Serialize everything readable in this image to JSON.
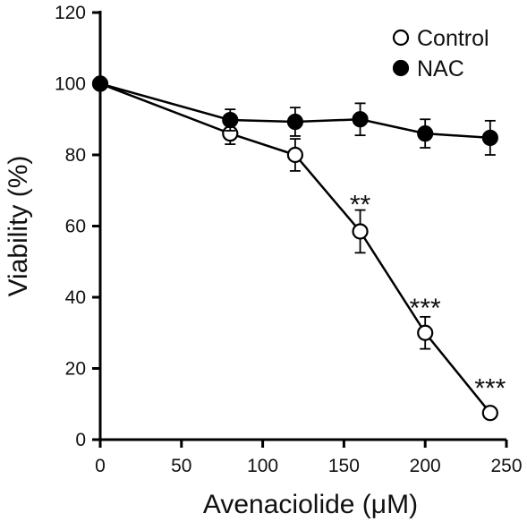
{
  "chart_data": {
    "type": "line",
    "title": "",
    "xlabel": "Avenaciolide (μM)",
    "ylabel": "Viability (%)",
    "xlim": [
      0,
      250
    ],
    "ylim": [
      0,
      120
    ],
    "xticks": [
      0,
      50,
      100,
      150,
      200,
      250
    ],
    "yticks": [
      0,
      20,
      40,
      60,
      80,
      100,
      120
    ],
    "grid": false,
    "legend_position": "top-right",
    "series": [
      {
        "name": "Control",
        "marker": "open-circle",
        "color": "#000000",
        "x": [
          0,
          80,
          120,
          160,
          200,
          240
        ],
        "y": [
          100,
          86,
          80,
          58.5,
          30,
          7.5
        ],
        "error": [
          0,
          3,
          4.5,
          6,
          4.5,
          0
        ]
      },
      {
        "name": "NAC",
        "marker": "filled-circle",
        "color": "#000000",
        "x": [
          0,
          80,
          120,
          160,
          200,
          240
        ],
        "y": [
          100,
          89.8,
          89.3,
          90,
          86,
          84.8
        ],
        "error": [
          0,
          3,
          4,
          4.5,
          4,
          4.8
        ]
      }
    ],
    "annotations": [
      {
        "text": "**",
        "x": 160,
        "y": 67
      },
      {
        "text": "***",
        "x": 200,
        "y": 38
      },
      {
        "text": "***",
        "x": 240,
        "y": 15.5
      }
    ]
  }
}
